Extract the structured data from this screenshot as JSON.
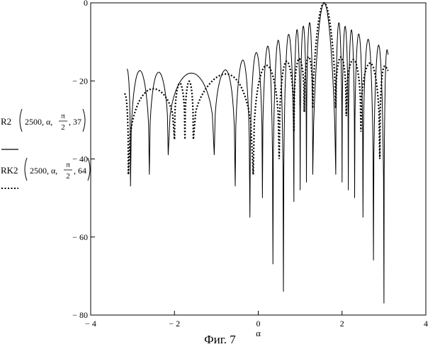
{
  "chart_data": {
    "type": "line",
    "title": "",
    "xlabel": "α",
    "ylabel": "",
    "xlim": [
      -4,
      4
    ],
    "ylim": [
      -80,
      0
    ],
    "x_ticks": [
      -4,
      -2,
      0,
      2,
      4
    ],
    "x_tick_labels": [
      "− 4",
      "− 2",
      "0",
      "2",
      "4"
    ],
    "y_ticks": [
      0,
      -20,
      -40,
      -60,
      -80
    ],
    "y_tick_labels": [
      "0",
      "− 20",
      "− 40",
      "− 60",
      "− 80"
    ],
    "grid": false,
    "legend_position": "left",
    "legend": [
      {
        "style": "solid",
        "func": "R2",
        "args": [
          "2500",
          "α",
          "",
          "37"
        ],
        "frac_num": "π",
        "frac_den": "2"
      },
      {
        "style": "dotted",
        "func": "RK2",
        "args": [
          "2500",
          "α",
          "",
          "64"
        ],
        "frac_num": "π",
        "frac_den": "2"
      }
    ],
    "series": [
      {
        "style": "solid",
        "color": "#000000",
        "peak_x": 1.571,
        "x_range": [
          -3.14,
          3.1
        ],
        "nulls": [
          [
            -3.05,
            -47
          ],
          [
            -2.6,
            -44
          ],
          [
            -2.15,
            -39
          ],
          [
            -1.05,
            -39
          ],
          [
            -0.55,
            -47
          ],
          [
            -0.2,
            -55
          ],
          [
            0.1,
            -50
          ],
          [
            0.35,
            -67
          ],
          [
            0.6,
            -74
          ],
          [
            0.85,
            -51
          ],
          [
            1.0,
            -48
          ],
          [
            1.15,
            -46
          ],
          [
            1.3,
            -44
          ],
          [
            1.85,
            -44
          ],
          [
            2.0,
            -46
          ],
          [
            2.15,
            -48
          ],
          [
            2.3,
            -50
          ],
          [
            2.5,
            -55
          ],
          [
            2.75,
            -66
          ],
          [
            3.0,
            -77
          ]
        ]
      },
      {
        "style": "dotted",
        "color": "#000000",
        "peak_x": 1.571,
        "x_range": [
          -3.2,
          3.1
        ],
        "nulls": [
          [
            -3.1,
            -44
          ],
          [
            -2.0,
            -35
          ],
          [
            -1.75,
            -35
          ],
          [
            -1.55,
            -35
          ],
          [
            -0.12,
            -44
          ],
          [
            0.5,
            -40
          ],
          [
            0.85,
            -33
          ],
          [
            1.1,
            -28
          ],
          [
            1.3,
            -27
          ],
          [
            1.85,
            -27
          ],
          [
            2.1,
            -29
          ],
          [
            2.45,
            -33
          ],
          [
            2.9,
            -40
          ]
        ]
      }
    ]
  },
  "caption": "Фиг. 7"
}
